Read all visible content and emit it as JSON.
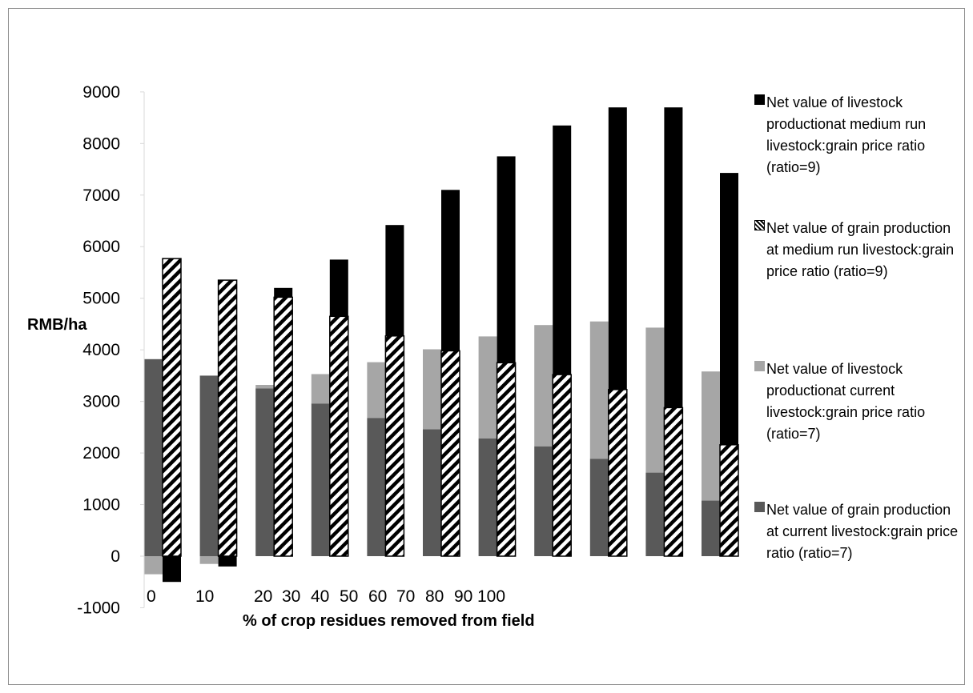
{
  "chart_data": {
    "type": "bar",
    "ylabel": "RMB/ha",
    "xlabel": "% of crop residues removed from field",
    "ylim": [
      -1000,
      9000
    ],
    "y_ticks": [
      -1000,
      0,
      1000,
      2000,
      3000,
      4000,
      5000,
      6000,
      7000,
      8000,
      9000
    ],
    "x_tick_labels": [
      "0",
      "10",
      "20",
      "30",
      "40",
      "50",
      "60",
      "70",
      "80",
      "90",
      "100"
    ],
    "categories": [
      "0",
      "10",
      "20",
      "30",
      "40",
      "50",
      "60",
      "70",
      "80",
      "90",
      "100"
    ],
    "grid": false,
    "legend_position": "right",
    "series": [
      {
        "name": "Net value of livestock productionat medium run livestock:grain price ratio (ratio=9)",
        "values": [
          -500,
          -200,
          5200,
          5750,
          6420,
          7100,
          7750,
          8350,
          8700,
          8700,
          7430
        ],
        "color": "#000000"
      },
      {
        "name": "Net value of grain production at medium run livestock:grain price ratio (ratio=9)",
        "values": [
          5770,
          5350,
          5020,
          4650,
          4270,
          3980,
          3750,
          3520,
          3230,
          2880,
          2160
        ],
        "color": "hatched"
      },
      {
        "name": "Net value of livestock productionat current livestock:grain price ratio (ratio=7)",
        "values": [
          -350,
          -150,
          3320,
          3530,
          3760,
          4010,
          4260,
          4480,
          4550,
          4430,
          3580
        ],
        "color": "#a6a6a6"
      },
      {
        "name": "Net value of grain production at current livestock:grain price ratio (ratio=7)",
        "values": [
          3820,
          3500,
          3250,
          2960,
          2680,
          2460,
          2280,
          2130,
          1890,
          1620,
          1080
        ],
        "color": "#595959"
      }
    ]
  },
  "legend": [
    {
      "label": "Net value of livestock productionat medium run livestock:grain price ratio (ratio=9)",
      "style": "black"
    },
    {
      "label": "Net value of grain production at medium run livestock:grain price ratio (ratio=9)",
      "style": "hatch"
    },
    {
      "label": "Net value of livestock productionat current livestock:grain price ratio (ratio=7)",
      "style": "light"
    },
    {
      "label": "Net value of grain production at current livestock:grain price ratio (ratio=7)",
      "style": "dark"
    }
  ]
}
